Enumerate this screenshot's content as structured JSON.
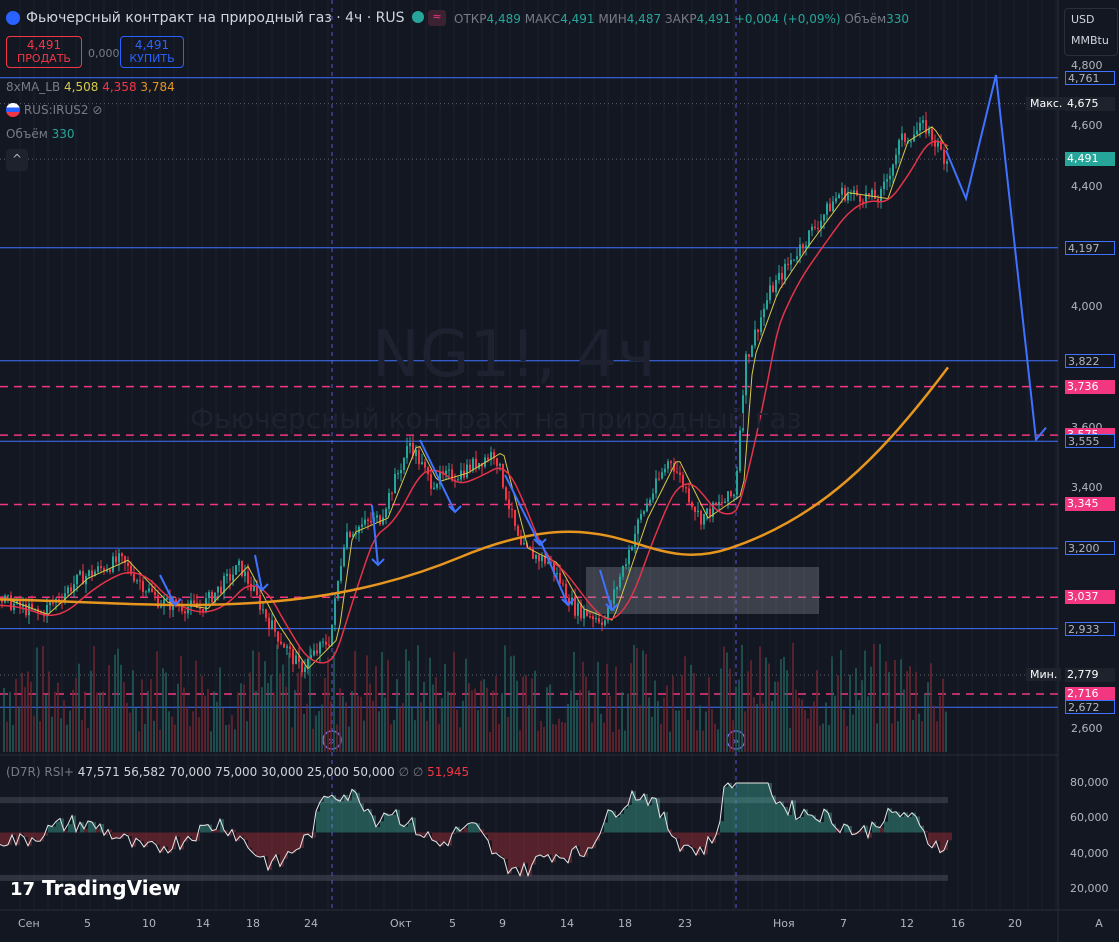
{
  "header": {
    "title": "Фьючерсный контракт на природный газ · 4ч · RUS",
    "ohlc": [
      {
        "k": "ОТКР",
        "v": "4,489"
      },
      {
        "k": "МАКС",
        "v": "4,491"
      },
      {
        "k": "МИН",
        "v": "4,487"
      },
      {
        "k": "ЗАКР",
        "v": "4,491"
      }
    ],
    "change": "+0,004 (+0,09%)",
    "volume_label": "Объём",
    "volume_value": "330",
    "currency": "USD",
    "unit": "MMBtu"
  },
  "trade": {
    "sell_price": "4,491",
    "sell_label": "ПРОДАТЬ",
    "spread": "0,000",
    "buy_price": "4,491",
    "buy_label": "КУПИТЬ"
  },
  "indicators": {
    "ma_label": "8xMA_LB",
    "ma_values": [
      "4,508",
      "4,358",
      "3,784"
    ],
    "symbol2": "RUS:IRUS2",
    "vol_label": "Объём",
    "vol_value": "330",
    "rsi_label": "(D7R) RSI+",
    "rsi_values": [
      "47,571",
      "56,582",
      "70,000",
      "75,000",
      "30,000",
      "25,000",
      "50,000"
    ],
    "rsi_last": "51,945",
    "rsi_sym1": "∅",
    "rsi_sym2": "∅"
  },
  "watermark": {
    "symbol": "NG1!, 4ч",
    "name": "Фьючерсный контракт на природный газ"
  },
  "price_axis": [
    "4,800",
    "4,600",
    "4,400",
    "4,000",
    "3,600",
    "3,400",
    "2,600"
  ],
  "price_labels": [
    {
      "text": "4,761",
      "kind": "blue"
    },
    {
      "text": "4,675",
      "kind": "max",
      "tag": "Макс."
    },
    {
      "text": "4,491",
      "kind": "last"
    },
    {
      "text": "4,197",
      "kind": "blue"
    },
    {
      "text": "3,822",
      "kind": "blue"
    },
    {
      "text": "3,736",
      "kind": "pink"
    },
    {
      "text": "3,575",
      "kind": "pink"
    },
    {
      "text": "3,555",
      "kind": "blue"
    },
    {
      "text": "3,345",
      "kind": "pink"
    },
    {
      "text": "3,200",
      "kind": "blue"
    },
    {
      "text": "3,037",
      "kind": "pink"
    },
    {
      "text": "2,933",
      "kind": "blue"
    },
    {
      "text": "2,779",
      "kind": "min",
      "tag": "Мин."
    },
    {
      "text": "2,716",
      "kind": "pink"
    },
    {
      "text": "2,672",
      "kind": "blue"
    }
  ],
  "rsi_axis": [
    "80,000",
    "60,000",
    "40,000",
    "20,000"
  ],
  "time_axis": [
    "Сен",
    "5",
    "10",
    "14",
    "18",
    "24",
    "Окт",
    "5",
    "9",
    "14",
    "18",
    "23",
    "Ноя",
    "7",
    "12",
    "16",
    "20"
  ],
  "branding": "TradingView",
  "colors": {
    "up": "#26a69a",
    "down": "#f23645",
    "blue": "#2962ff",
    "pink": "#f23680",
    "ma_slow": "#e6961e"
  }
}
